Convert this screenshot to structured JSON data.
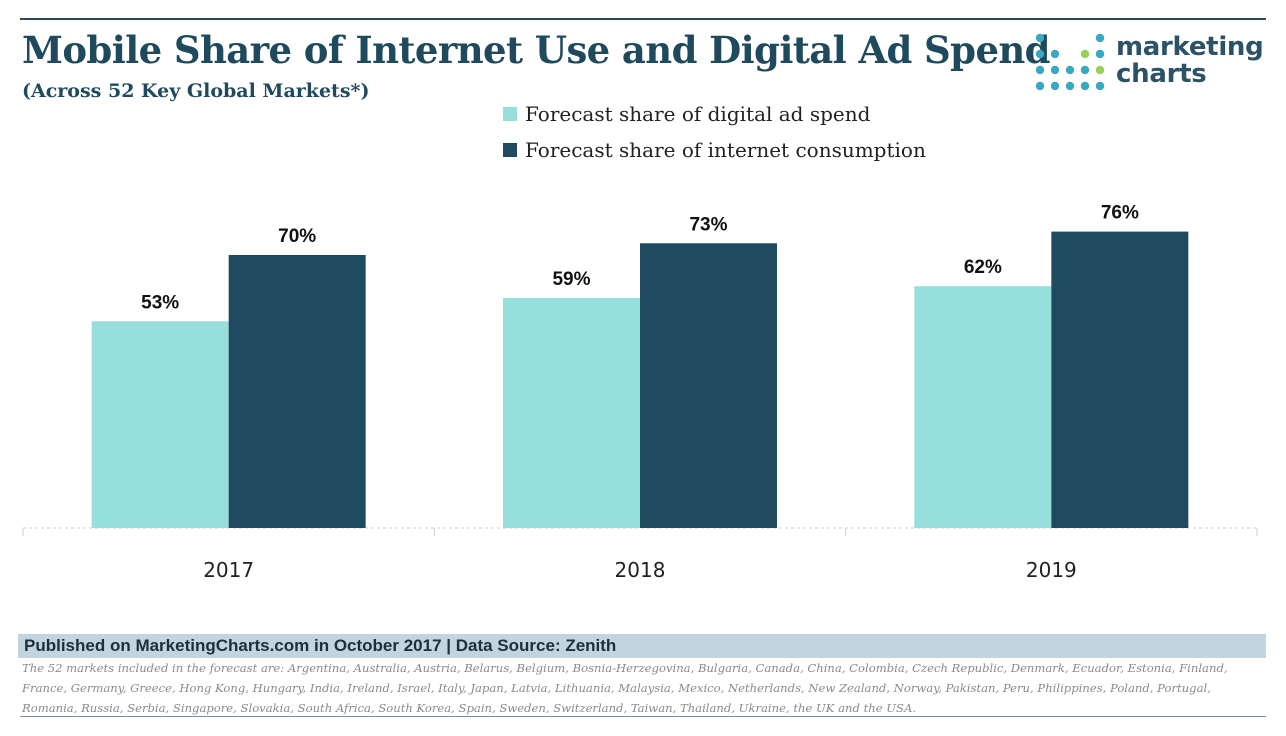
{
  "title": "Mobile Share of Internet Use and Digital Ad Spend",
  "subtitle": "(Across 52 Key Global Markets*)",
  "logo": {
    "line1": "marketing",
    "line2": "charts"
  },
  "colors": {
    "ad_spend": "#96dfdc",
    "internet": "#1f4a60",
    "title": "#1f4a5e"
  },
  "chart_data": {
    "type": "bar",
    "title": "Mobile Share of Internet Use and Digital Ad Spend",
    "subtitle": "(Across 52 Key Global Markets*)",
    "categories": [
      "2017",
      "2018",
      "2019"
    ],
    "series": [
      {
        "name": "Forecast share of digital ad spend",
        "values": [
          53,
          59,
          62
        ],
        "labels": [
          "53%",
          "59%",
          "62%"
        ]
      },
      {
        "name": "Forecast share of internet consumption",
        "values": [
          70,
          73,
          76
        ],
        "labels": [
          "70%",
          "73%",
          "76%"
        ]
      }
    ],
    "xlabel": "",
    "ylabel": "",
    "ylim": [
      0,
      100
    ],
    "legend_position": "top-center",
    "grid": false
  },
  "footer": {
    "source": "Published on MarketingCharts.com in October 2017 | Data Source: Zenith",
    "note": "The 52 markets included in the forecast are: Argentina, Australia, Austria, Belarus, Belgium, Bosnia-Herzegovina, Bulgaria, Canada, China, Colombia, Czech Republic, Denmark, Ecuador, Estonia, Finland, France, Germany, Greece, Hong Kong, Hungary, India, Ireland, Israel, Italy, Japan, Latvia, Lithuania, Malaysia, Mexico, Netherlands, New Zealand, Norway, Pakistan, Peru, Philippines, Poland, Portugal, Romania, Russia, Serbia, Singapore, Slovakia, South Africa, South Korea, Spain, Sweden, Switzerland, Taiwan, Thailand, Ukraine, the UK and the USA."
  }
}
